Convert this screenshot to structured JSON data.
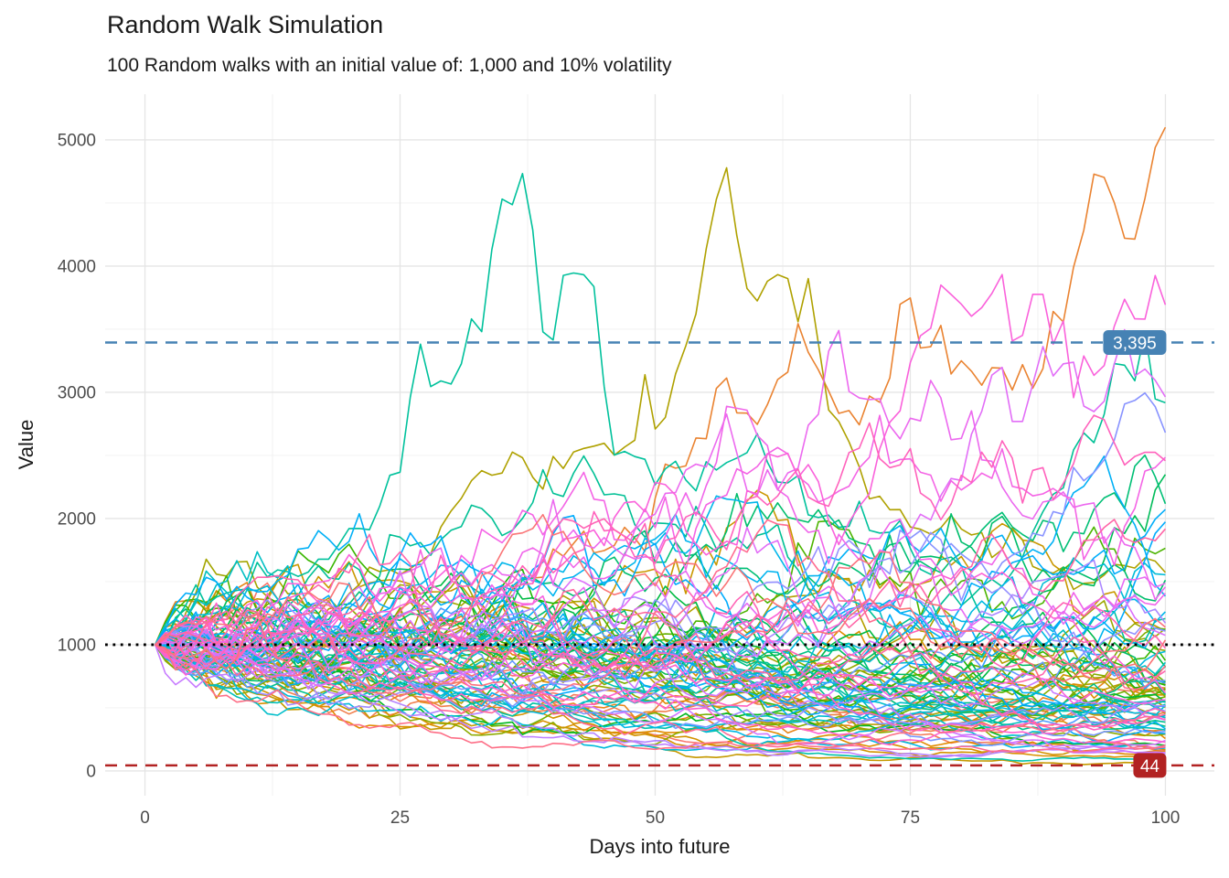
{
  "chart_data": {
    "type": "line",
    "title": "Random Walk Simulation",
    "subtitle": "100 Random walks with an initial value of: 1,000 and 10% volatility",
    "xlabel": "Days into future",
    "ylabel": "Value",
    "x_ticks": [
      0,
      25,
      50,
      75,
      100
    ],
    "y_ticks": [
      0,
      1000,
      2000,
      3000,
      4000,
      5000
    ],
    "xlim": [
      -3.9,
      104.8
    ],
    "ylim": [
      -196,
      5362
    ],
    "grid": true,
    "legend_position": "none",
    "series_params": {
      "n_walks": 100,
      "n_days": 100,
      "day_start": 1,
      "initial_value": 1000,
      "daily_volatility": 0.1,
      "seed": 1337,
      "max_observed_value": 5100
    },
    "palette": {
      "type": "ggplot-hcl-hue",
      "hue_start": 15,
      "hue_end": 375,
      "chroma": 100,
      "luminance": 65
    },
    "reference_lines": [
      {
        "value": 3395,
        "label": "3,395",
        "color": "#4682B4",
        "linetype": "dashed",
        "label_text_color": "#ffffff"
      },
      {
        "value": 1000,
        "label": "",
        "color": "#000000",
        "linetype": "dotted",
        "label_text_color": ""
      },
      {
        "value": 44,
        "label": "44",
        "color": "#B22222",
        "linetype": "dashed",
        "label_text_color": "#ffffff"
      }
    ],
    "colors": {
      "tick_label": "#4d4d4d",
      "axis_title": "#1a1a1a",
      "grid_major": "#e5e5e5",
      "grid_minor": "#f0f0f0",
      "background": "#ffffff",
      "walk_stroke_width": 1.6
    }
  }
}
